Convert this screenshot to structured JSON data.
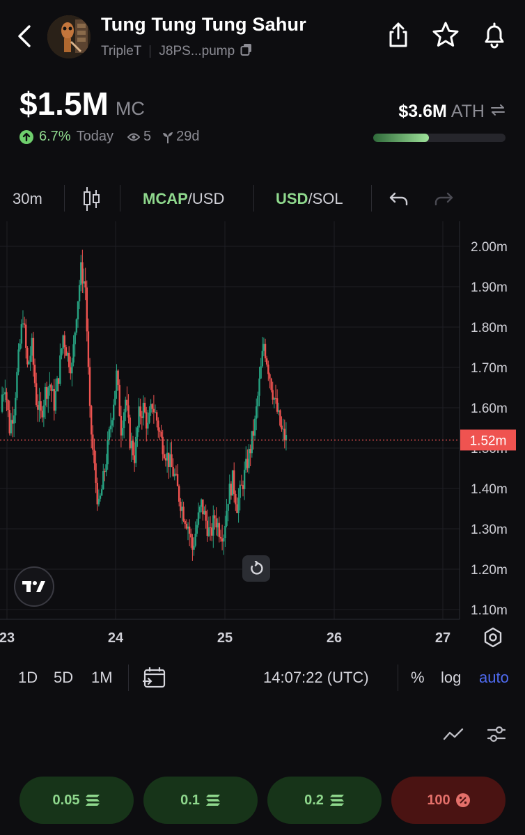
{
  "token": {
    "name": "Tung Tung Tung Sahur",
    "ticker": "TripleT",
    "address": "J8PS...pump"
  },
  "market_cap": {
    "value": "$1.5M",
    "unit": "MC",
    "change": "6.7%",
    "change_period": "Today",
    "watchers": "5",
    "age": "29d"
  },
  "ath": {
    "value": "$3.6M",
    "label": "ATH",
    "progress_fraction": 0.42
  },
  "toolbar": {
    "interval": "30m",
    "mcap_label": "MCAP",
    "mcap_quote": "/USD",
    "usd_label": "USD",
    "sol_quote": "/SOL"
  },
  "chart_data": {
    "type": "candlestick",
    "x_ticks": [
      "23",
      "24",
      "25",
      "26",
      "27"
    ],
    "y_ticks": [
      "2.00m",
      "1.90m",
      "1.80m",
      "1.70m",
      "1.60m",
      "1.50m",
      "1.40m",
      "1.30m",
      "1.20m",
      "1.10m"
    ],
    "ylim": [
      1.1,
      2.0
    ],
    "current_price": 1.52,
    "current_price_label": "1.52m",
    "series": [
      1.62,
      1.66,
      1.55,
      1.6,
      1.72,
      1.83,
      1.7,
      1.75,
      1.62,
      1.58,
      1.64,
      1.66,
      1.61,
      1.68,
      1.78,
      1.73,
      1.7,
      1.84,
      1.94,
      1.9,
      1.58,
      1.45,
      1.35,
      1.42,
      1.5,
      1.59,
      1.68,
      1.55,
      1.62,
      1.52,
      1.48,
      1.58,
      1.6,
      1.55,
      1.61,
      1.57,
      1.52,
      1.49,
      1.46,
      1.43,
      1.38,
      1.34,
      1.31,
      1.25,
      1.31,
      1.36,
      1.32,
      1.28,
      1.33,
      1.3,
      1.29,
      1.38,
      1.42,
      1.36,
      1.4,
      1.45,
      1.5,
      1.56,
      1.66,
      1.76,
      1.7,
      1.64,
      1.59,
      1.54,
      1.52
    ],
    "colors": {
      "up": "#27a281",
      "down": "#ef5350"
    }
  },
  "bottom_bar": {
    "ranges": [
      "1D",
      "5D",
      "1M"
    ],
    "time": "14:07:22 (UTC)",
    "percent": "%",
    "log": "log",
    "auto": "auto"
  },
  "quick_buys": [
    {
      "label": "0.05"
    },
    {
      "label": "0.1"
    },
    {
      "label": "0.2"
    }
  ],
  "quick_sell": {
    "label": "100"
  },
  "colors": {
    "accent_green": "#8fd88d",
    "accent_red": "#e4706a",
    "auto_blue": "#4f6bf0",
    "background": "#0d0d10"
  }
}
